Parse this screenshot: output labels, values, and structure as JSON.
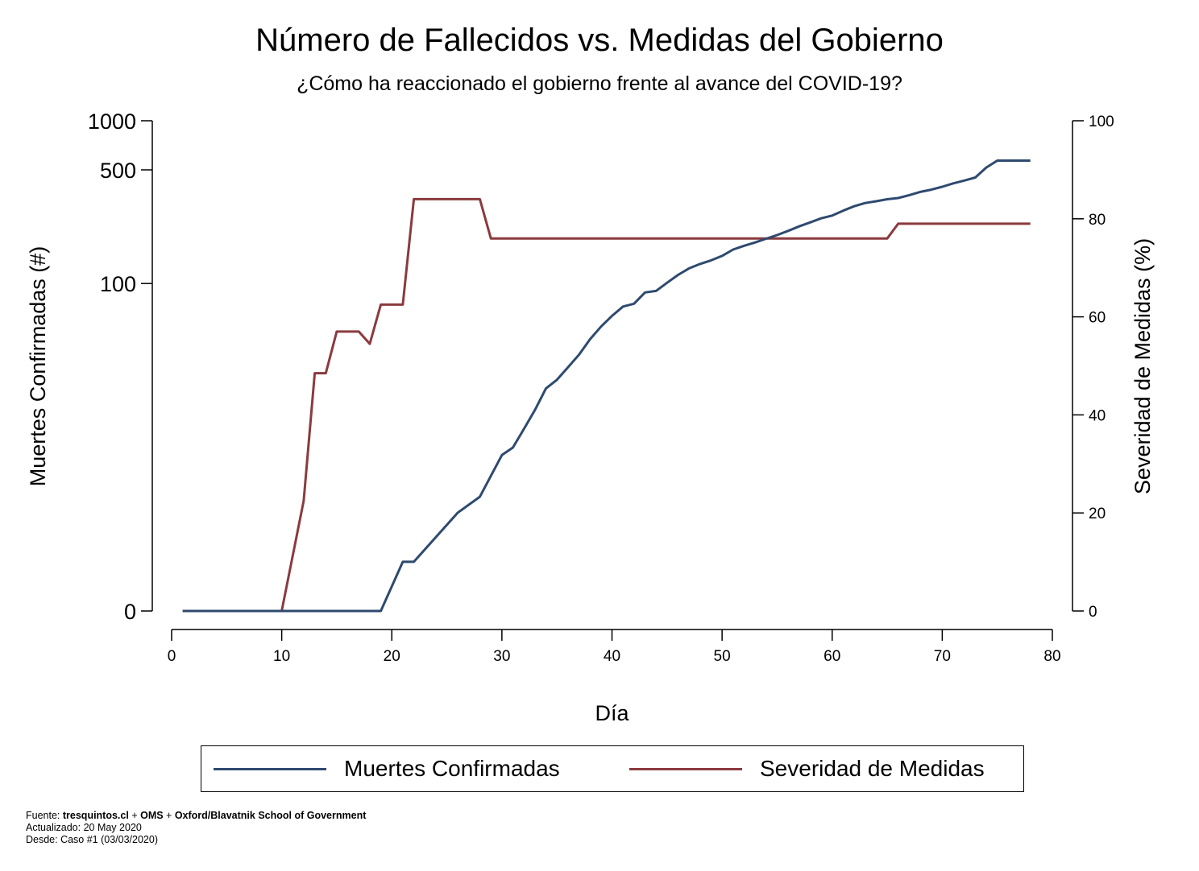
{
  "chart_data": {
    "type": "line",
    "title": "Número de Fallecidos vs. Medidas del Gobierno",
    "subtitle": "¿Cómo ha reaccionado el gobierno frente al avance del COVID-19?",
    "xlabel": "Día",
    "ylabel_left": "Muertes Confirmadas (#)",
    "ylabel_right": "Severidad de Medidas (%)",
    "xlim": [
      0,
      80
    ],
    "x_ticks": [
      0,
      10,
      20,
      30,
      40,
      50,
      60,
      70,
      80
    ],
    "y_left_ticks": [
      0,
      100,
      500,
      1000
    ],
    "y_left_scale": "symlog",
    "y_right_lim": [
      0,
      100
    ],
    "y_right_ticks": [
      0,
      20,
      40,
      60,
      80,
      100
    ],
    "legend_position": "bottom",
    "grid": false,
    "series": [
      {
        "name": "Muertes Confirmadas",
        "axis": "left",
        "color": "#2e4a6f",
        "points": [
          [
            1,
            0
          ],
          [
            10,
            0
          ],
          [
            19,
            0
          ],
          [
            21,
            1
          ],
          [
            22,
            1
          ],
          [
            26,
            3
          ],
          [
            28,
            4
          ],
          [
            30,
            8
          ],
          [
            31,
            9
          ],
          [
            32,
            12
          ],
          [
            33,
            16
          ],
          [
            34,
            22
          ],
          [
            35,
            25
          ],
          [
            36,
            30
          ],
          [
            37,
            36
          ],
          [
            38,
            45
          ],
          [
            39,
            54
          ],
          [
            40,
            63
          ],
          [
            41,
            72
          ],
          [
            42,
            75
          ],
          [
            43,
            88
          ],
          [
            44,
            90
          ],
          [
            45,
            101
          ],
          [
            46,
            113
          ],
          [
            47,
            124
          ],
          [
            48,
            132
          ],
          [
            49,
            139
          ],
          [
            50,
            148
          ],
          [
            51,
            162
          ],
          [
            52,
            171
          ],
          [
            53,
            179
          ],
          [
            54,
            189
          ],
          [
            55,
            199
          ],
          [
            56,
            211
          ],
          [
            57,
            225
          ],
          [
            58,
            238
          ],
          [
            59,
            252
          ],
          [
            60,
            262
          ],
          [
            61,
            281
          ],
          [
            62,
            299
          ],
          [
            63,
            313
          ],
          [
            64,
            321
          ],
          [
            65,
            330
          ],
          [
            66,
            336
          ],
          [
            67,
            350
          ],
          [
            68,
            366
          ],
          [
            69,
            378
          ],
          [
            70,
            394
          ],
          [
            71,
            413
          ],
          [
            72,
            430
          ],
          [
            73,
            449
          ],
          [
            74,
            517
          ],
          [
            75,
            570
          ],
          [
            78,
            570
          ]
        ]
      },
      {
        "name": "Severidad de Medidas",
        "axis": "right",
        "color": "#8b3a3f",
        "points": [
          [
            1,
            0
          ],
          [
            10,
            0
          ],
          [
            12,
            22.5
          ],
          [
            13,
            48.5
          ],
          [
            14,
            48.5
          ],
          [
            15,
            57
          ],
          [
            17,
            57
          ],
          [
            18,
            54.5
          ],
          [
            19,
            62.5
          ],
          [
            21,
            62.5
          ],
          [
            22,
            84
          ],
          [
            28,
            84
          ],
          [
            29,
            76
          ],
          [
            65,
            76
          ],
          [
            66,
            79
          ],
          [
            78,
            79
          ]
        ]
      }
    ]
  },
  "footnote": {
    "source_label": "Fuente: ",
    "source_bold_1": "tresquintos.cl",
    "plus_1": " + ",
    "source_bold_2": "OMS",
    "plus_2": " + ",
    "source_bold_3": "Oxford/Blavatnik School of Government",
    "updated": "Actualizado: 20 May 2020",
    "since": "Desde: Caso #1 (03/03/2020)"
  }
}
